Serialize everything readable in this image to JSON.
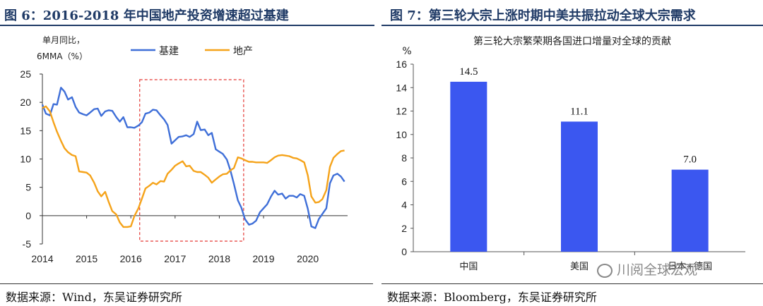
{
  "chart_data": [
    {
      "type": "line",
      "title": "图 6：2016-2018 年中国地产投资增速超过基建",
      "ylabel": "单月同比，6MMA（%）",
      "ylabel_line1": "单月同比，",
      "ylabel_line2": "6MMA（%）",
      "xlabel": "",
      "xlim": [
        2014.0,
        2020.9
      ],
      "ylim": [
        -5,
        25
      ],
      "yticks": [
        -5,
        0,
        5,
        10,
        15,
        20,
        25
      ],
      "xticks": [
        2014,
        2015,
        2016,
        2017,
        2018,
        2019,
        2020
      ],
      "legend": "top-center",
      "highlight": {
        "x_start": 2016.2,
        "x_end": 2018.55,
        "y_start": -4.5,
        "y_end": 24,
        "style": "red dashed"
      },
      "series": [
        {
          "name": "基建",
          "color": "#3f6fd8",
          "points": [
            [
              2014.0,
              19.6
            ],
            [
              2014.08,
              18.0
            ],
            [
              2014.17,
              17.7
            ],
            [
              2014.25,
              19.7
            ],
            [
              2014.33,
              19.6
            ],
            [
              2014.42,
              22.6
            ],
            [
              2014.5,
              21.9
            ],
            [
              2014.58,
              20.5
            ],
            [
              2014.67,
              20.9
            ],
            [
              2014.75,
              19.2
            ],
            [
              2014.83,
              18.2
            ],
            [
              2014.92,
              17.9
            ],
            [
              2015.0,
              17.7
            ],
            [
              2015.08,
              18.2
            ],
            [
              2015.17,
              18.8
            ],
            [
              2015.25,
              18.9
            ],
            [
              2015.33,
              17.6
            ],
            [
              2015.42,
              18.4
            ],
            [
              2015.5,
              18.6
            ],
            [
              2015.58,
              18.5
            ],
            [
              2015.67,
              17.4
            ],
            [
              2015.75,
              16.6
            ],
            [
              2015.83,
              17.4
            ],
            [
              2015.92,
              15.6
            ],
            [
              2016.0,
              15.6
            ],
            [
              2016.08,
              15.5
            ],
            [
              2016.17,
              15.9
            ],
            [
              2016.25,
              16.5
            ],
            [
              2016.33,
              18.0
            ],
            [
              2016.42,
              18.2
            ],
            [
              2016.5,
              18.7
            ],
            [
              2016.58,
              18.6
            ],
            [
              2016.67,
              17.7
            ],
            [
              2016.75,
              17.0
            ],
            [
              2016.83,
              16.0
            ],
            [
              2016.92,
              12.7
            ],
            [
              2017.0,
              13.3
            ],
            [
              2017.08,
              13.9
            ],
            [
              2017.17,
              14.0
            ],
            [
              2017.25,
              14.2
            ],
            [
              2017.33,
              13.9
            ],
            [
              2017.42,
              14.4
            ],
            [
              2017.5,
              16.6
            ],
            [
              2017.58,
              15.1
            ],
            [
              2017.67,
              15.2
            ],
            [
              2017.75,
              14.2
            ],
            [
              2017.83,
              14.6
            ],
            [
              2017.92,
              11.7
            ],
            [
              2018.0,
              11.3
            ],
            [
              2018.08,
              10.9
            ],
            [
              2018.17,
              9.9
            ],
            [
              2018.25,
              8.0
            ],
            [
              2018.33,
              5.6
            ],
            [
              2018.42,
              2.7
            ],
            [
              2018.5,
              1.4
            ],
            [
              2018.58,
              -0.6
            ],
            [
              2018.67,
              -1.6
            ],
            [
              2018.75,
              -1.4
            ],
            [
              2018.83,
              -0.9
            ],
            [
              2018.92,
              0.6
            ],
            [
              2019.0,
              1.3
            ],
            [
              2019.08,
              2.0
            ],
            [
              2019.17,
              3.4
            ],
            [
              2019.25,
              4.4
            ],
            [
              2019.33,
              3.7
            ],
            [
              2019.42,
              3.9
            ],
            [
              2019.5,
              3.0
            ],
            [
              2019.58,
              3.5
            ],
            [
              2019.67,
              3.5
            ],
            [
              2019.75,
              3.2
            ],
            [
              2019.83,
              3.8
            ],
            [
              2019.92,
              3.5
            ],
            [
              2020.0,
              1.2
            ],
            [
              2020.08,
              -1.9
            ],
            [
              2020.17,
              -2.2
            ],
            [
              2020.25,
              -0.6
            ],
            [
              2020.33,
              0.3
            ],
            [
              2020.42,
              1.3
            ],
            [
              2020.5,
              5.7
            ],
            [
              2020.58,
              7.1
            ],
            [
              2020.67,
              7.4
            ],
            [
              2020.75,
              6.9
            ],
            [
              2020.83,
              6.0
            ]
          ]
        },
        {
          "name": "地产",
          "color": "#f5a31a",
          "points": [
            [
              2014.0,
              19.0
            ],
            [
              2014.08,
              19.3
            ],
            [
              2014.17,
              18.4
            ],
            [
              2014.25,
              16.5
            ],
            [
              2014.33,
              14.8
            ],
            [
              2014.42,
              13.2
            ],
            [
              2014.5,
              11.9
            ],
            [
              2014.58,
              11.2
            ],
            [
              2014.67,
              10.7
            ],
            [
              2014.75,
              10.5
            ],
            [
              2014.83,
              7.8
            ],
            [
              2014.92,
              7.7
            ],
            [
              2015.0,
              7.6
            ],
            [
              2015.08,
              7.1
            ],
            [
              2015.17,
              5.8
            ],
            [
              2015.25,
              4.3
            ],
            [
              2015.33,
              3.4
            ],
            [
              2015.42,
              4.2
            ],
            [
              2015.5,
              2.4
            ],
            [
              2015.58,
              0.8
            ],
            [
              2015.67,
              0.2
            ],
            [
              2015.75,
              -1.2
            ],
            [
              2015.83,
              -2.0
            ],
            [
              2015.92,
              -2.0
            ],
            [
              2016.0,
              -1.9
            ],
            [
              2016.08,
              -0.1
            ],
            [
              2016.17,
              1.3
            ],
            [
              2016.25,
              3.0
            ],
            [
              2016.33,
              4.8
            ],
            [
              2016.42,
              5.3
            ],
            [
              2016.5,
              5.8
            ],
            [
              2016.58,
              5.5
            ],
            [
              2016.67,
              6.1
            ],
            [
              2016.75,
              6.0
            ],
            [
              2016.83,
              7.4
            ],
            [
              2016.92,
              8.1
            ],
            [
              2017.0,
              8.8
            ],
            [
              2017.08,
              9.2
            ],
            [
              2017.17,
              9.6
            ],
            [
              2017.25,
              8.7
            ],
            [
              2017.33,
              8.8
            ],
            [
              2017.42,
              7.9
            ],
            [
              2017.5,
              7.7
            ],
            [
              2017.58,
              7.7
            ],
            [
              2017.67,
              7.2
            ],
            [
              2017.75,
              6.7
            ],
            [
              2017.83,
              5.8
            ],
            [
              2017.92,
              6.4
            ],
            [
              2018.0,
              6.9
            ],
            [
              2018.08,
              7.3
            ],
            [
              2018.17,
              7.4
            ],
            [
              2018.25,
              8.0
            ],
            [
              2018.33,
              8.4
            ],
            [
              2018.42,
              10.3
            ],
            [
              2018.5,
              10.1
            ],
            [
              2018.58,
              9.8
            ],
            [
              2018.67,
              9.5
            ],
            [
              2018.75,
              9.5
            ],
            [
              2018.83,
              9.4
            ],
            [
              2018.92,
              9.4
            ],
            [
              2019.0,
              9.4
            ],
            [
              2019.08,
              9.3
            ],
            [
              2019.17,
              9.8
            ],
            [
              2019.25,
              10.3
            ],
            [
              2019.33,
              10.6
            ],
            [
              2019.42,
              10.7
            ],
            [
              2019.5,
              10.6
            ],
            [
              2019.58,
              10.5
            ],
            [
              2019.67,
              10.2
            ],
            [
              2019.75,
              10.1
            ],
            [
              2019.83,
              9.8
            ],
            [
              2019.92,
              9.4
            ],
            [
              2020.0,
              7.1
            ],
            [
              2020.08,
              3.4
            ],
            [
              2020.17,
              2.3
            ],
            [
              2020.25,
              2.4
            ],
            [
              2020.33,
              2.9
            ],
            [
              2020.42,
              4.5
            ],
            [
              2020.5,
              8.6
            ],
            [
              2020.58,
              10.2
            ],
            [
              2020.67,
              10.9
            ],
            [
              2020.75,
              11.4
            ],
            [
              2020.83,
              11.5
            ]
          ]
        }
      ]
    },
    {
      "type": "bar",
      "title": "图 7：第三轮大宗上涨时期中美共振拉动全球大宗需求",
      "subtitle": "第三轮大宗繁荣期各国进口增量对全球的贡献",
      "ylabel": "%",
      "xlabel": "",
      "categories": [
        "中国",
        "美国",
        "日本+德国"
      ],
      "values": [
        14.5,
        11.1,
        7.0
      ],
      "data_labels": [
        "14.5",
        "11.1",
        "7.0"
      ],
      "ylim": [
        0,
        16
      ],
      "yticks": [
        0,
        2,
        4,
        6,
        8,
        10,
        12,
        14,
        16
      ],
      "legend": "none",
      "bar_color": "#3b57f0"
    }
  ],
  "left_source": "数据来源：Wind，东吴证券研究所",
  "right_source": "数据来源：Bloomberg，东吴证券研究所",
  "watermark": "川阅全球宏观"
}
